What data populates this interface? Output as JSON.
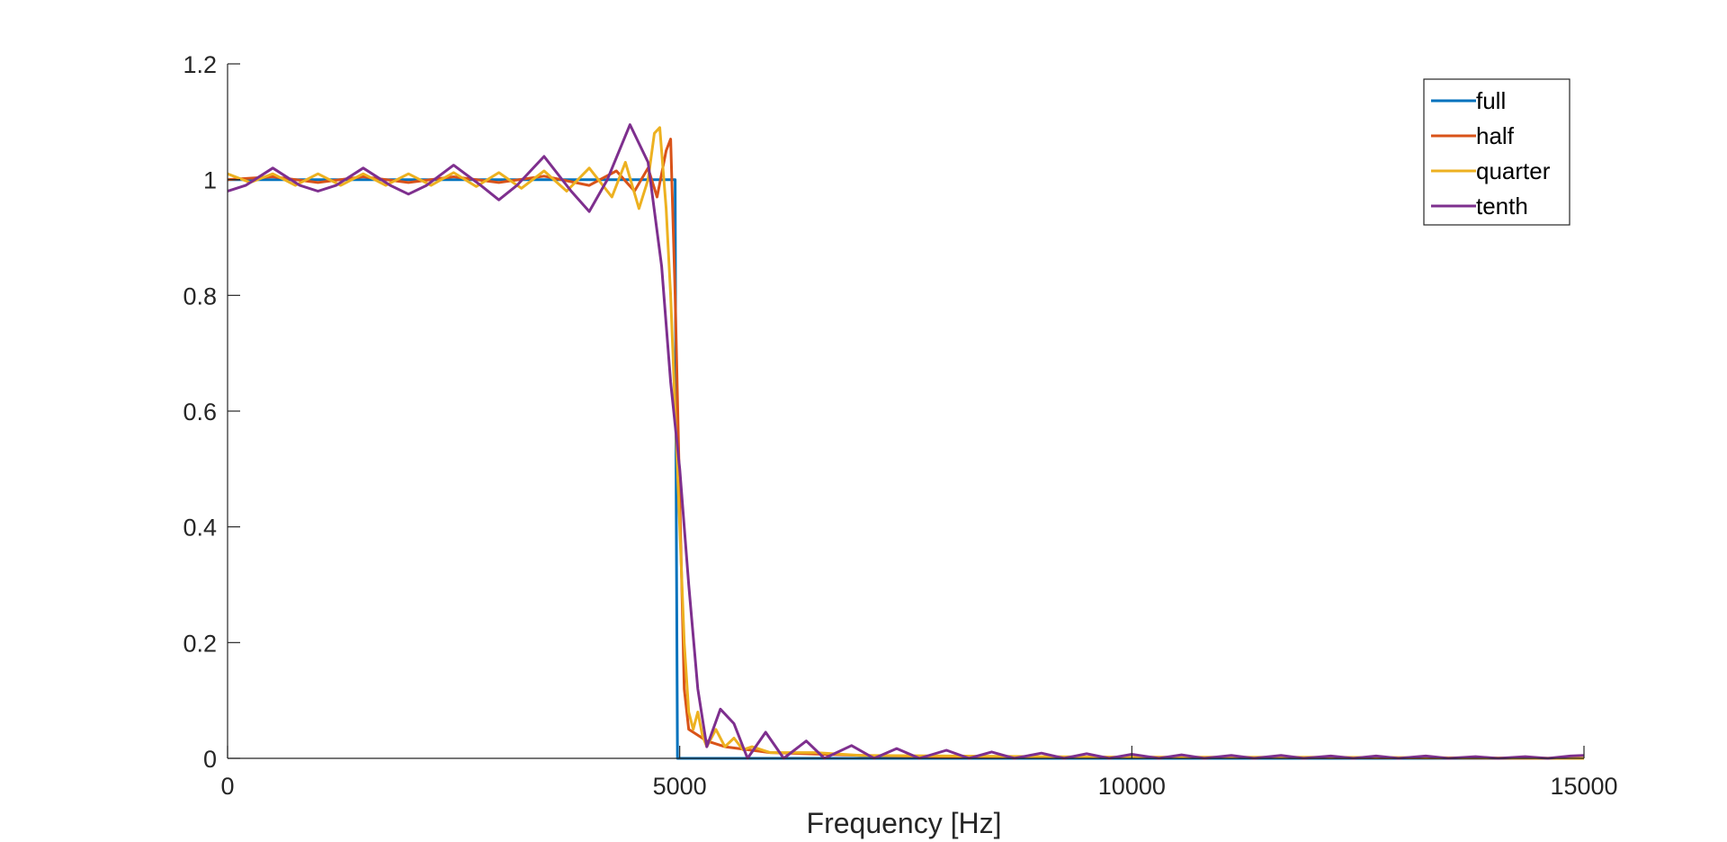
{
  "chart_data": {
    "type": "line",
    "title": "",
    "xlabel": "Frequency [Hz]",
    "ylabel": "",
    "xlim": [
      0,
      15000
    ],
    "ylim": [
      0,
      1.2
    ],
    "x_ticks": [
      "0",
      "5000",
      "10000",
      "15000"
    ],
    "y_ticks": [
      "0",
      "0.2",
      "0.4",
      "0.6",
      "0.8",
      "1",
      "1.2"
    ],
    "grid": false,
    "legend_position": "top-right",
    "series": [
      {
        "name": "full",
        "color": "#0072BD",
        "points": [
          [
            0,
            1.0
          ],
          [
            4950,
            1.0
          ],
          [
            4960,
            0.5
          ],
          [
            4975,
            0.0
          ],
          [
            15000,
            0.0
          ]
        ]
      },
      {
        "name": "half",
        "color": "#D95319",
        "points": [
          [
            0,
            1.0
          ],
          [
            500,
            1.005
          ],
          [
            1000,
            0.995
          ],
          [
            1500,
            1.005
          ],
          [
            2000,
            0.995
          ],
          [
            2500,
            1.005
          ],
          [
            3000,
            0.995
          ],
          [
            3500,
            1.006
          ],
          [
            4000,
            0.99
          ],
          [
            4300,
            1.015
          ],
          [
            4500,
            0.98
          ],
          [
            4650,
            1.02
          ],
          [
            4750,
            0.97
          ],
          [
            4850,
            1.05
          ],
          [
            4900,
            1.07
          ],
          [
            4950,
            0.8
          ],
          [
            5000,
            0.45
          ],
          [
            5050,
            0.12
          ],
          [
            5100,
            0.05
          ],
          [
            5200,
            0.04
          ],
          [
            5300,
            0.03
          ],
          [
            5500,
            0.02
          ],
          [
            6000,
            0.01
          ],
          [
            7000,
            0.005
          ],
          [
            8000,
            0.003
          ],
          [
            10000,
            0.002
          ],
          [
            15000,
            0.0
          ]
        ]
      },
      {
        "name": "quarter",
        "color": "#EDB120",
        "points": [
          [
            0,
            1.01
          ],
          [
            250,
            0.995
          ],
          [
            500,
            1.01
          ],
          [
            750,
            0.99
          ],
          [
            1000,
            1.01
          ],
          [
            1250,
            0.99
          ],
          [
            1500,
            1.01
          ],
          [
            1750,
            0.99
          ],
          [
            2000,
            1.01
          ],
          [
            2250,
            0.99
          ],
          [
            2500,
            1.012
          ],
          [
            2750,
            0.988
          ],
          [
            3000,
            1.012
          ],
          [
            3250,
            0.985
          ],
          [
            3500,
            1.015
          ],
          [
            3750,
            0.98
          ],
          [
            4000,
            1.02
          ],
          [
            4250,
            0.97
          ],
          [
            4400,
            1.03
          ],
          [
            4550,
            0.95
          ],
          [
            4650,
            1.0
          ],
          [
            4720,
            1.08
          ],
          [
            4780,
            1.09
          ],
          [
            4850,
            0.95
          ],
          [
            4900,
            0.8
          ],
          [
            4950,
            0.6
          ],
          [
            5000,
            0.4
          ],
          [
            5050,
            0.2
          ],
          [
            5100,
            0.08
          ],
          [
            5150,
            0.05
          ],
          [
            5200,
            0.08
          ],
          [
            5250,
            0.04
          ],
          [
            5300,
            0.02
          ],
          [
            5400,
            0.05
          ],
          [
            5500,
            0.02
          ],
          [
            5600,
            0.035
          ],
          [
            5700,
            0.015
          ],
          [
            5800,
            0.02
          ],
          [
            6000,
            0.01
          ],
          [
            6500,
            0.01
          ],
          [
            7000,
            0.005
          ],
          [
            8000,
            0.004
          ],
          [
            9000,
            0.003
          ],
          [
            10000,
            0.002
          ],
          [
            12000,
            0.002
          ],
          [
            15000,
            0.0
          ]
        ]
      },
      {
        "name": "tenth",
        "color": "#7E2F8E",
        "points": [
          [
            0,
            0.98
          ],
          [
            200,
            0.99
          ],
          [
            500,
            1.02
          ],
          [
            800,
            0.99
          ],
          [
            1000,
            0.98
          ],
          [
            1200,
            0.99
          ],
          [
            1500,
            1.02
          ],
          [
            1800,
            0.99
          ],
          [
            2000,
            0.975
          ],
          [
            2200,
            0.99
          ],
          [
            2500,
            1.025
          ],
          [
            2800,
            0.99
          ],
          [
            3000,
            0.965
          ],
          [
            3200,
            0.99
          ],
          [
            3500,
            1.04
          ],
          [
            3800,
            0.98
          ],
          [
            4000,
            0.945
          ],
          [
            4200,
            1.0
          ],
          [
            4450,
            1.095
          ],
          [
            4650,
            1.03
          ],
          [
            4800,
            0.85
          ],
          [
            4900,
            0.65
          ],
          [
            5000,
            0.5
          ],
          [
            5100,
            0.3
          ],
          [
            5200,
            0.12
          ],
          [
            5300,
            0.02
          ],
          [
            5450,
            0.085
          ],
          [
            5600,
            0.06
          ],
          [
            5750,
            0.0
          ],
          [
            5950,
            0.045
          ],
          [
            6150,
            0.0
          ],
          [
            6400,
            0.03
          ],
          [
            6600,
            0.0
          ],
          [
            6900,
            0.022
          ],
          [
            7150,
            0.0
          ],
          [
            7400,
            0.017
          ],
          [
            7650,
            0.0
          ],
          [
            7950,
            0.014
          ],
          [
            8200,
            0.0
          ],
          [
            8450,
            0.011
          ],
          [
            8700,
            0.0
          ],
          [
            9000,
            0.009
          ],
          [
            9250,
            0.0
          ],
          [
            9500,
            0.008
          ],
          [
            9750,
            0.0
          ],
          [
            10000,
            0.007
          ],
          [
            10300,
            0.0
          ],
          [
            10550,
            0.006
          ],
          [
            10800,
            0.0
          ],
          [
            11100,
            0.005
          ],
          [
            11350,
            0.0
          ],
          [
            11650,
            0.005
          ],
          [
            11900,
            0.0
          ],
          [
            12200,
            0.004
          ],
          [
            12450,
            0.0
          ],
          [
            12700,
            0.004
          ],
          [
            12950,
            0.0
          ],
          [
            13250,
            0.004
          ],
          [
            13500,
            0.0
          ],
          [
            13800,
            0.003
          ],
          [
            14050,
            0.0
          ],
          [
            14350,
            0.003
          ],
          [
            14600,
            0.0
          ],
          [
            14850,
            0.004
          ],
          [
            15000,
            0.005
          ]
        ]
      }
    ]
  }
}
